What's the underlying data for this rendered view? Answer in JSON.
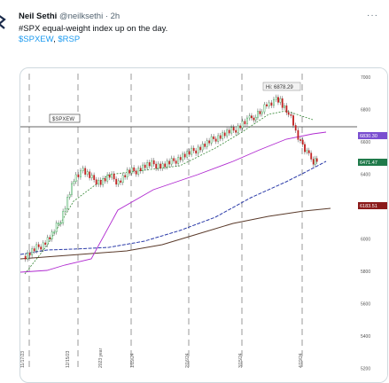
{
  "tweet": {
    "author_name": "Neil Sethi",
    "handle": "@neilksethi",
    "separator": "·",
    "time": "2h",
    "text_line1": "#SPX equal-weight index up on the day.",
    "cashtags": [
      "$SPXEW",
      "$RSP"
    ],
    "cashtag_separator": ", "
  },
  "chart": {
    "symbol_label": "$SPXEW",
    "high_label": "Hi: 6878.29",
    "price_tags": [
      {
        "value": "6830.30",
        "color": "#7a4fd0"
      },
      {
        "value": "6471.47",
        "color": "#1f7a4a"
      },
      {
        "value": "6183.51",
        "color": "#8b1a1a"
      }
    ],
    "y_ticks": [
      "7000",
      "6800",
      "6600",
      "6400",
      "6200",
      "6000",
      "5800",
      "5600",
      "5400",
      "5200"
    ],
    "date_labels": [
      "11/17/23",
      "12/15/23",
      "2023 year",
      "1/19/24",
      "2/16/24",
      "3/15/24",
      "4/19/24"
    ]
  }
}
